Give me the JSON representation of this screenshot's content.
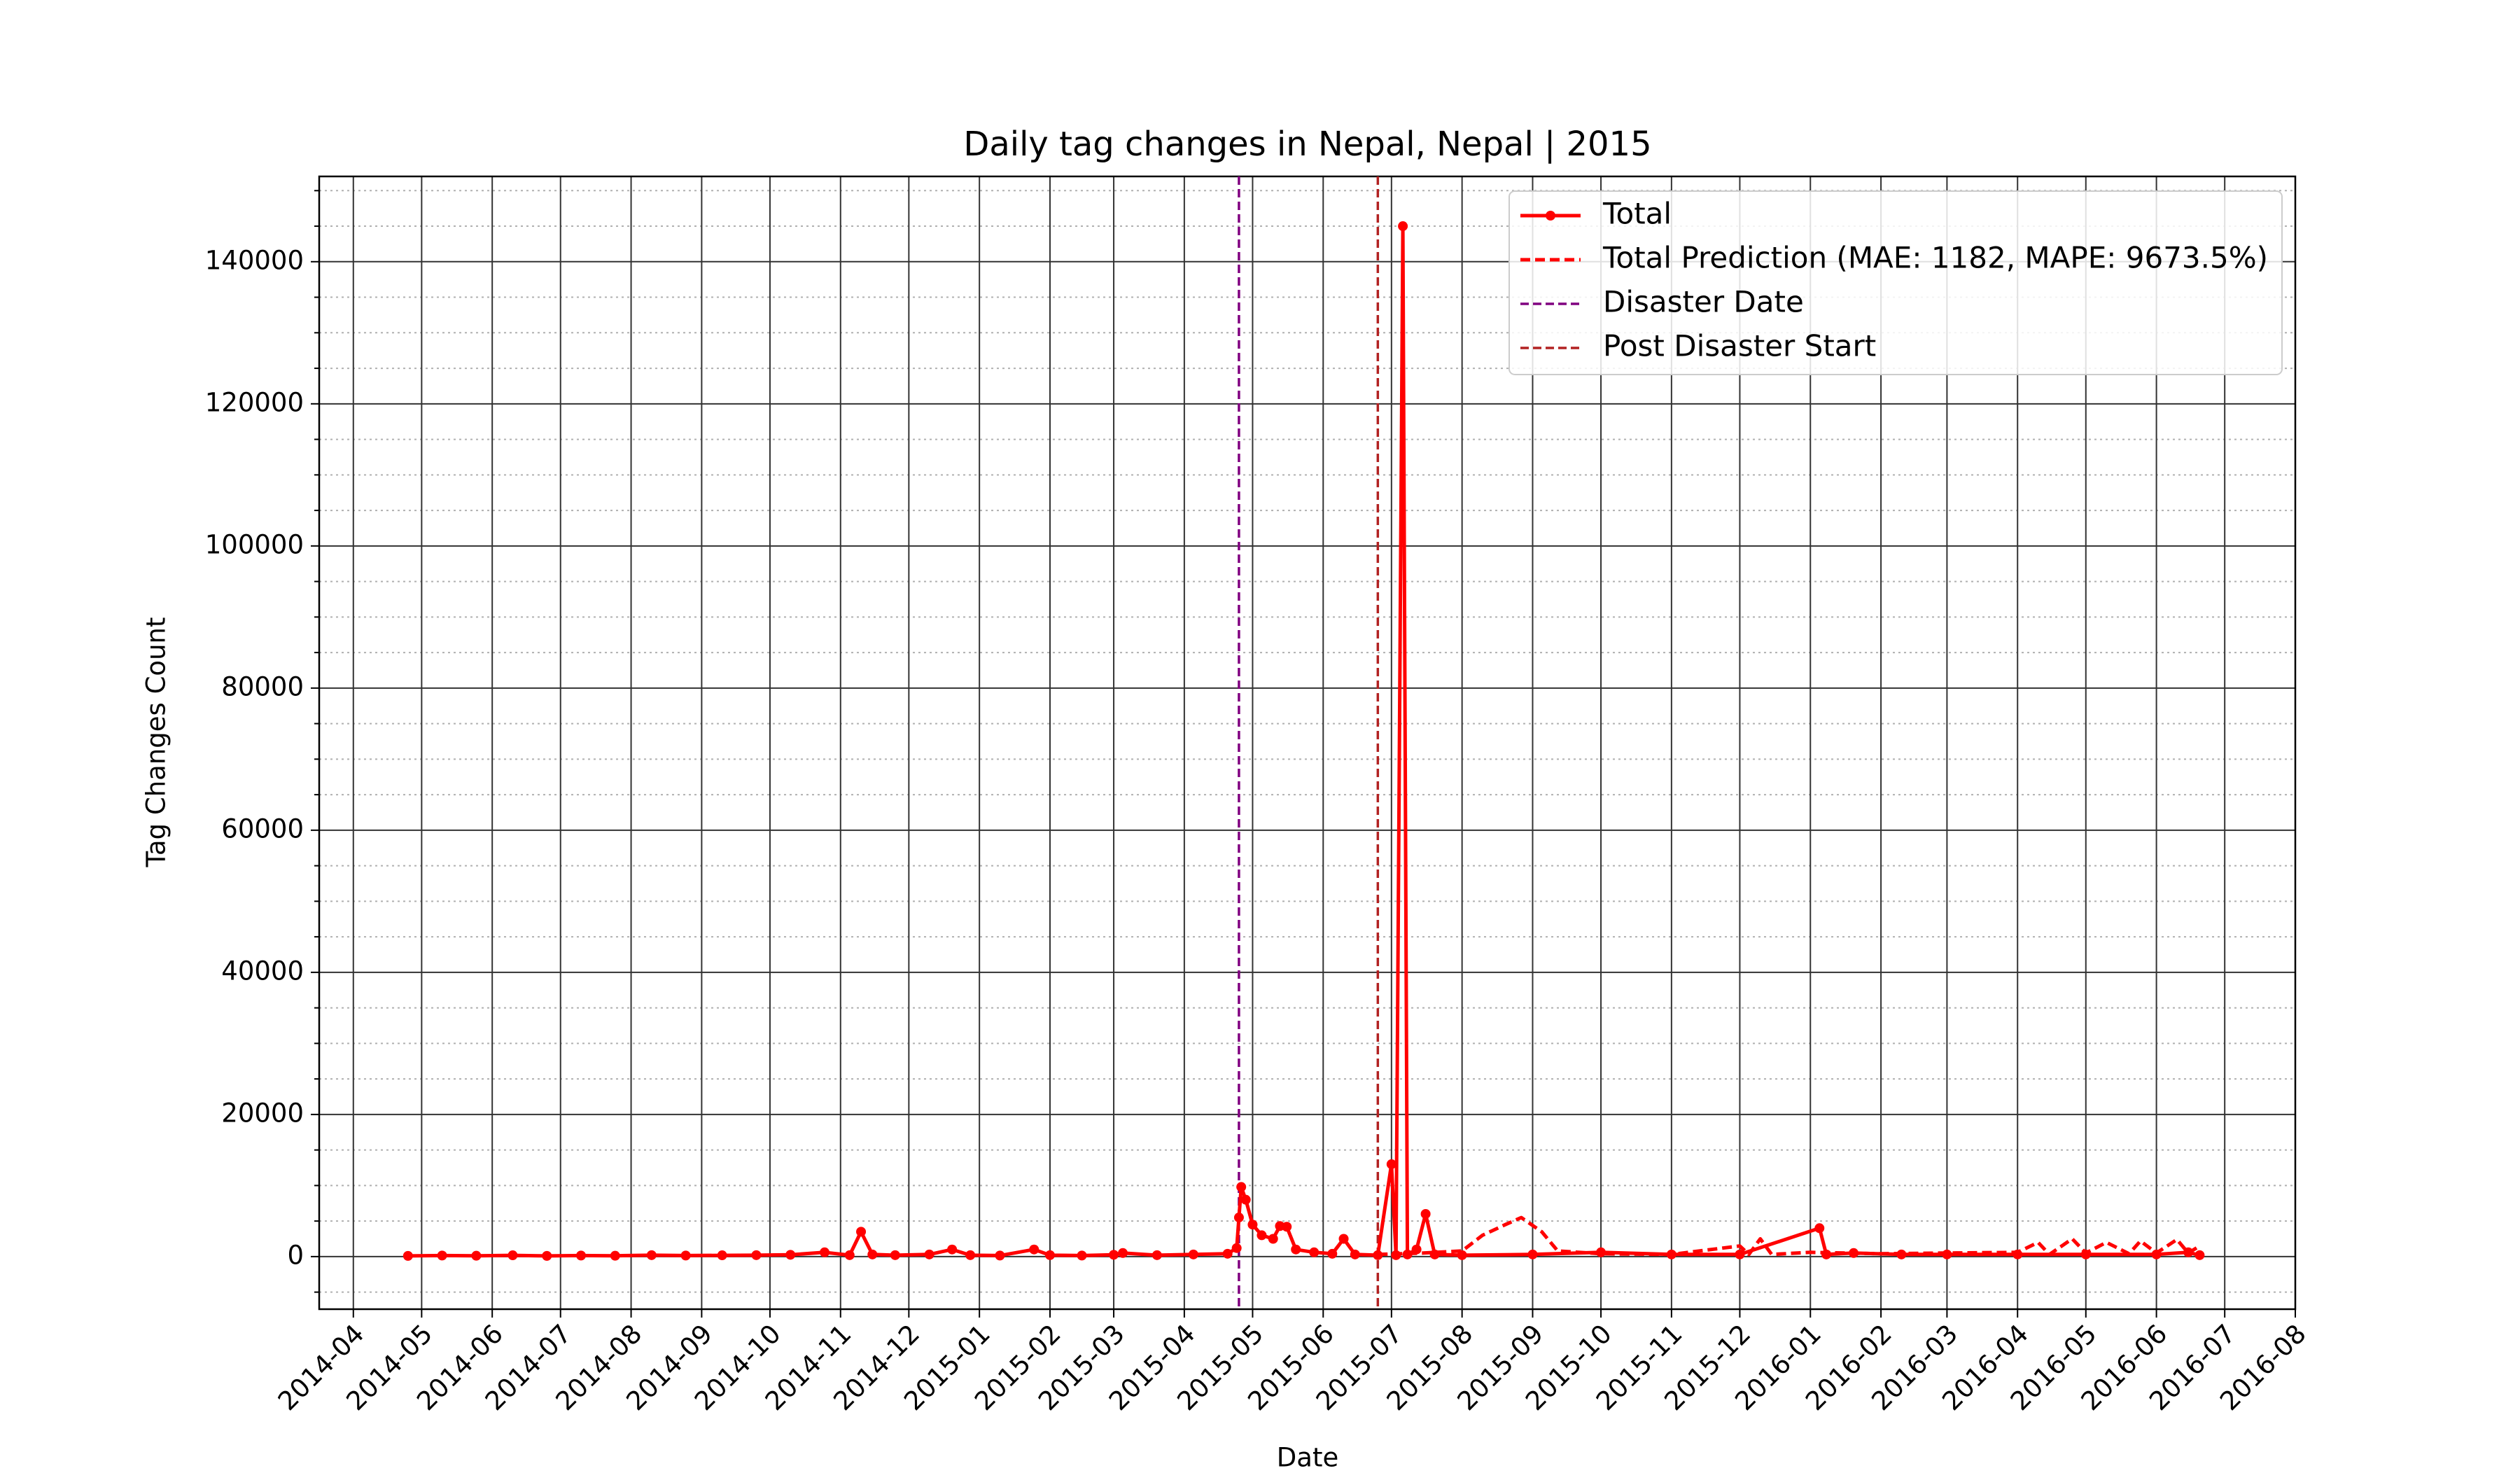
{
  "chart_data": {
    "type": "line",
    "title": "Daily tag changes in Nepal, Nepal | 2015",
    "xlabel": "Date",
    "ylabel": "Tag Changes Count",
    "xlim": [
      "2014-03-17",
      "2016-08-01"
    ],
    "ylim": [
      -7400,
      152000
    ],
    "xticks": [
      "2014-04",
      "2014-05",
      "2014-06",
      "2014-07",
      "2014-08",
      "2014-09",
      "2014-10",
      "2014-11",
      "2014-12",
      "2015-01",
      "2015-02",
      "2015-03",
      "2015-04",
      "2015-05",
      "2015-06",
      "2015-07",
      "2015-08",
      "2015-09",
      "2015-10",
      "2015-11",
      "2015-12",
      "2016-01",
      "2016-02",
      "2016-03",
      "2016-04",
      "2016-05",
      "2016-06",
      "2016-07",
      "2016-08"
    ],
    "yticks": [
      0,
      20000,
      40000,
      60000,
      80000,
      100000,
      120000,
      140000
    ],
    "yminor_ticks": [
      -5000,
      5000,
      10000,
      15000,
      25000,
      30000,
      35000,
      45000,
      50000,
      55000,
      65000,
      70000,
      75000,
      85000,
      90000,
      95000,
      105000,
      110000,
      115000,
      125000,
      130000,
      135000,
      145000,
      150000
    ],
    "grid": true,
    "legend_position": "upper right",
    "series": [
      {
        "name": "Total",
        "color": "#ff0000",
        "style": "solid",
        "markers": true,
        "x": [
          "2014-04-25",
          "2014-05-10",
          "2014-05-25",
          "2014-06-10",
          "2014-06-25",
          "2014-07-10",
          "2014-07-25",
          "2014-08-10",
          "2014-08-25",
          "2014-09-10",
          "2014-09-25",
          "2014-10-10",
          "2014-10-25",
          "2014-11-05",
          "2014-11-10",
          "2014-11-15",
          "2014-11-25",
          "2014-12-10",
          "2014-12-20",
          "2014-12-28",
          "2015-01-10",
          "2015-01-25",
          "2015-02-01",
          "2015-02-15",
          "2015-03-01",
          "2015-03-05",
          "2015-03-20",
          "2015-04-05",
          "2015-04-20",
          "2015-04-24",
          "2015-04-25",
          "2015-04-26",
          "2015-04-28",
          "2015-05-01",
          "2015-05-05",
          "2015-05-10",
          "2015-05-13",
          "2015-05-16",
          "2015-05-20",
          "2015-05-28",
          "2015-06-05",
          "2015-06-10",
          "2015-06-15",
          "2015-06-25",
          "2015-07-01",
          "2015-07-03",
          "2015-07-06",
          "2015-07-08",
          "2015-07-12",
          "2015-07-16",
          "2015-07-20",
          "2015-08-01",
          "2015-09-01",
          "2015-10-01",
          "2015-11-01",
          "2015-12-01",
          "2016-01-05",
          "2016-01-08",
          "2016-01-20",
          "2016-02-10",
          "2016-03-01",
          "2016-04-01",
          "2016-05-01",
          "2016-06-01",
          "2016-06-15",
          "2016-06-20"
        ],
        "values": [
          100,
          150,
          120,
          180,
          100,
          150,
          120,
          200,
          150,
          180,
          200,
          250,
          600,
          200,
          3500,
          300,
          200,
          300,
          1000,
          200,
          150,
          1000,
          200,
          150,
          250,
          500,
          200,
          300,
          400,
          1200,
          5500,
          9800,
          8000,
          4500,
          3000,
          2500,
          4300,
          4200,
          1000,
          600,
          400,
          2500,
          300,
          200,
          13000,
          200,
          145000,
          300,
          1000,
          6000,
          300,
          200,
          300,
          600,
          300,
          300,
          4000,
          300,
          500,
          300,
          300,
          300,
          300,
          300,
          600,
          200
        ]
      },
      {
        "name": "Total Prediction (MAE: 1182, MAPE: 9673.5%)",
        "color": "#ff0000",
        "style": "dashed",
        "markers": false,
        "x": [
          "2015-06-25",
          "2015-07-15",
          "2015-08-01",
          "2015-08-10",
          "2015-08-20",
          "2015-08-27",
          "2015-09-05",
          "2015-09-12",
          "2015-10-01",
          "2015-11-01",
          "2015-12-01",
          "2015-12-05",
          "2015-12-10",
          "2015-12-15",
          "2016-01-01",
          "2016-02-01",
          "2016-03-01",
          "2016-04-01",
          "2016-04-10",
          "2016-04-15",
          "2016-04-25",
          "2016-05-01",
          "2016-05-10",
          "2016-05-20",
          "2016-05-25",
          "2016-06-01",
          "2016-06-10",
          "2016-06-15",
          "2016-06-20"
        ],
        "values": [
          300,
          500,
          800,
          3000,
          4500,
          5500,
          3500,
          800,
          400,
          300,
          1500,
          300,
          2500,
          300,
          600,
          400,
          500,
          600,
          2000,
          300,
          2500,
          500,
          2000,
          400,
          2200,
          500,
          2400,
          500,
          1500
        ]
      }
    ],
    "vlines": [
      {
        "name": "Disaster Date",
        "x": "2015-04-25",
        "color": "#800080"
      },
      {
        "name": "Post Disaster Start",
        "x": "2015-06-25",
        "color": "#b22222"
      }
    ]
  }
}
